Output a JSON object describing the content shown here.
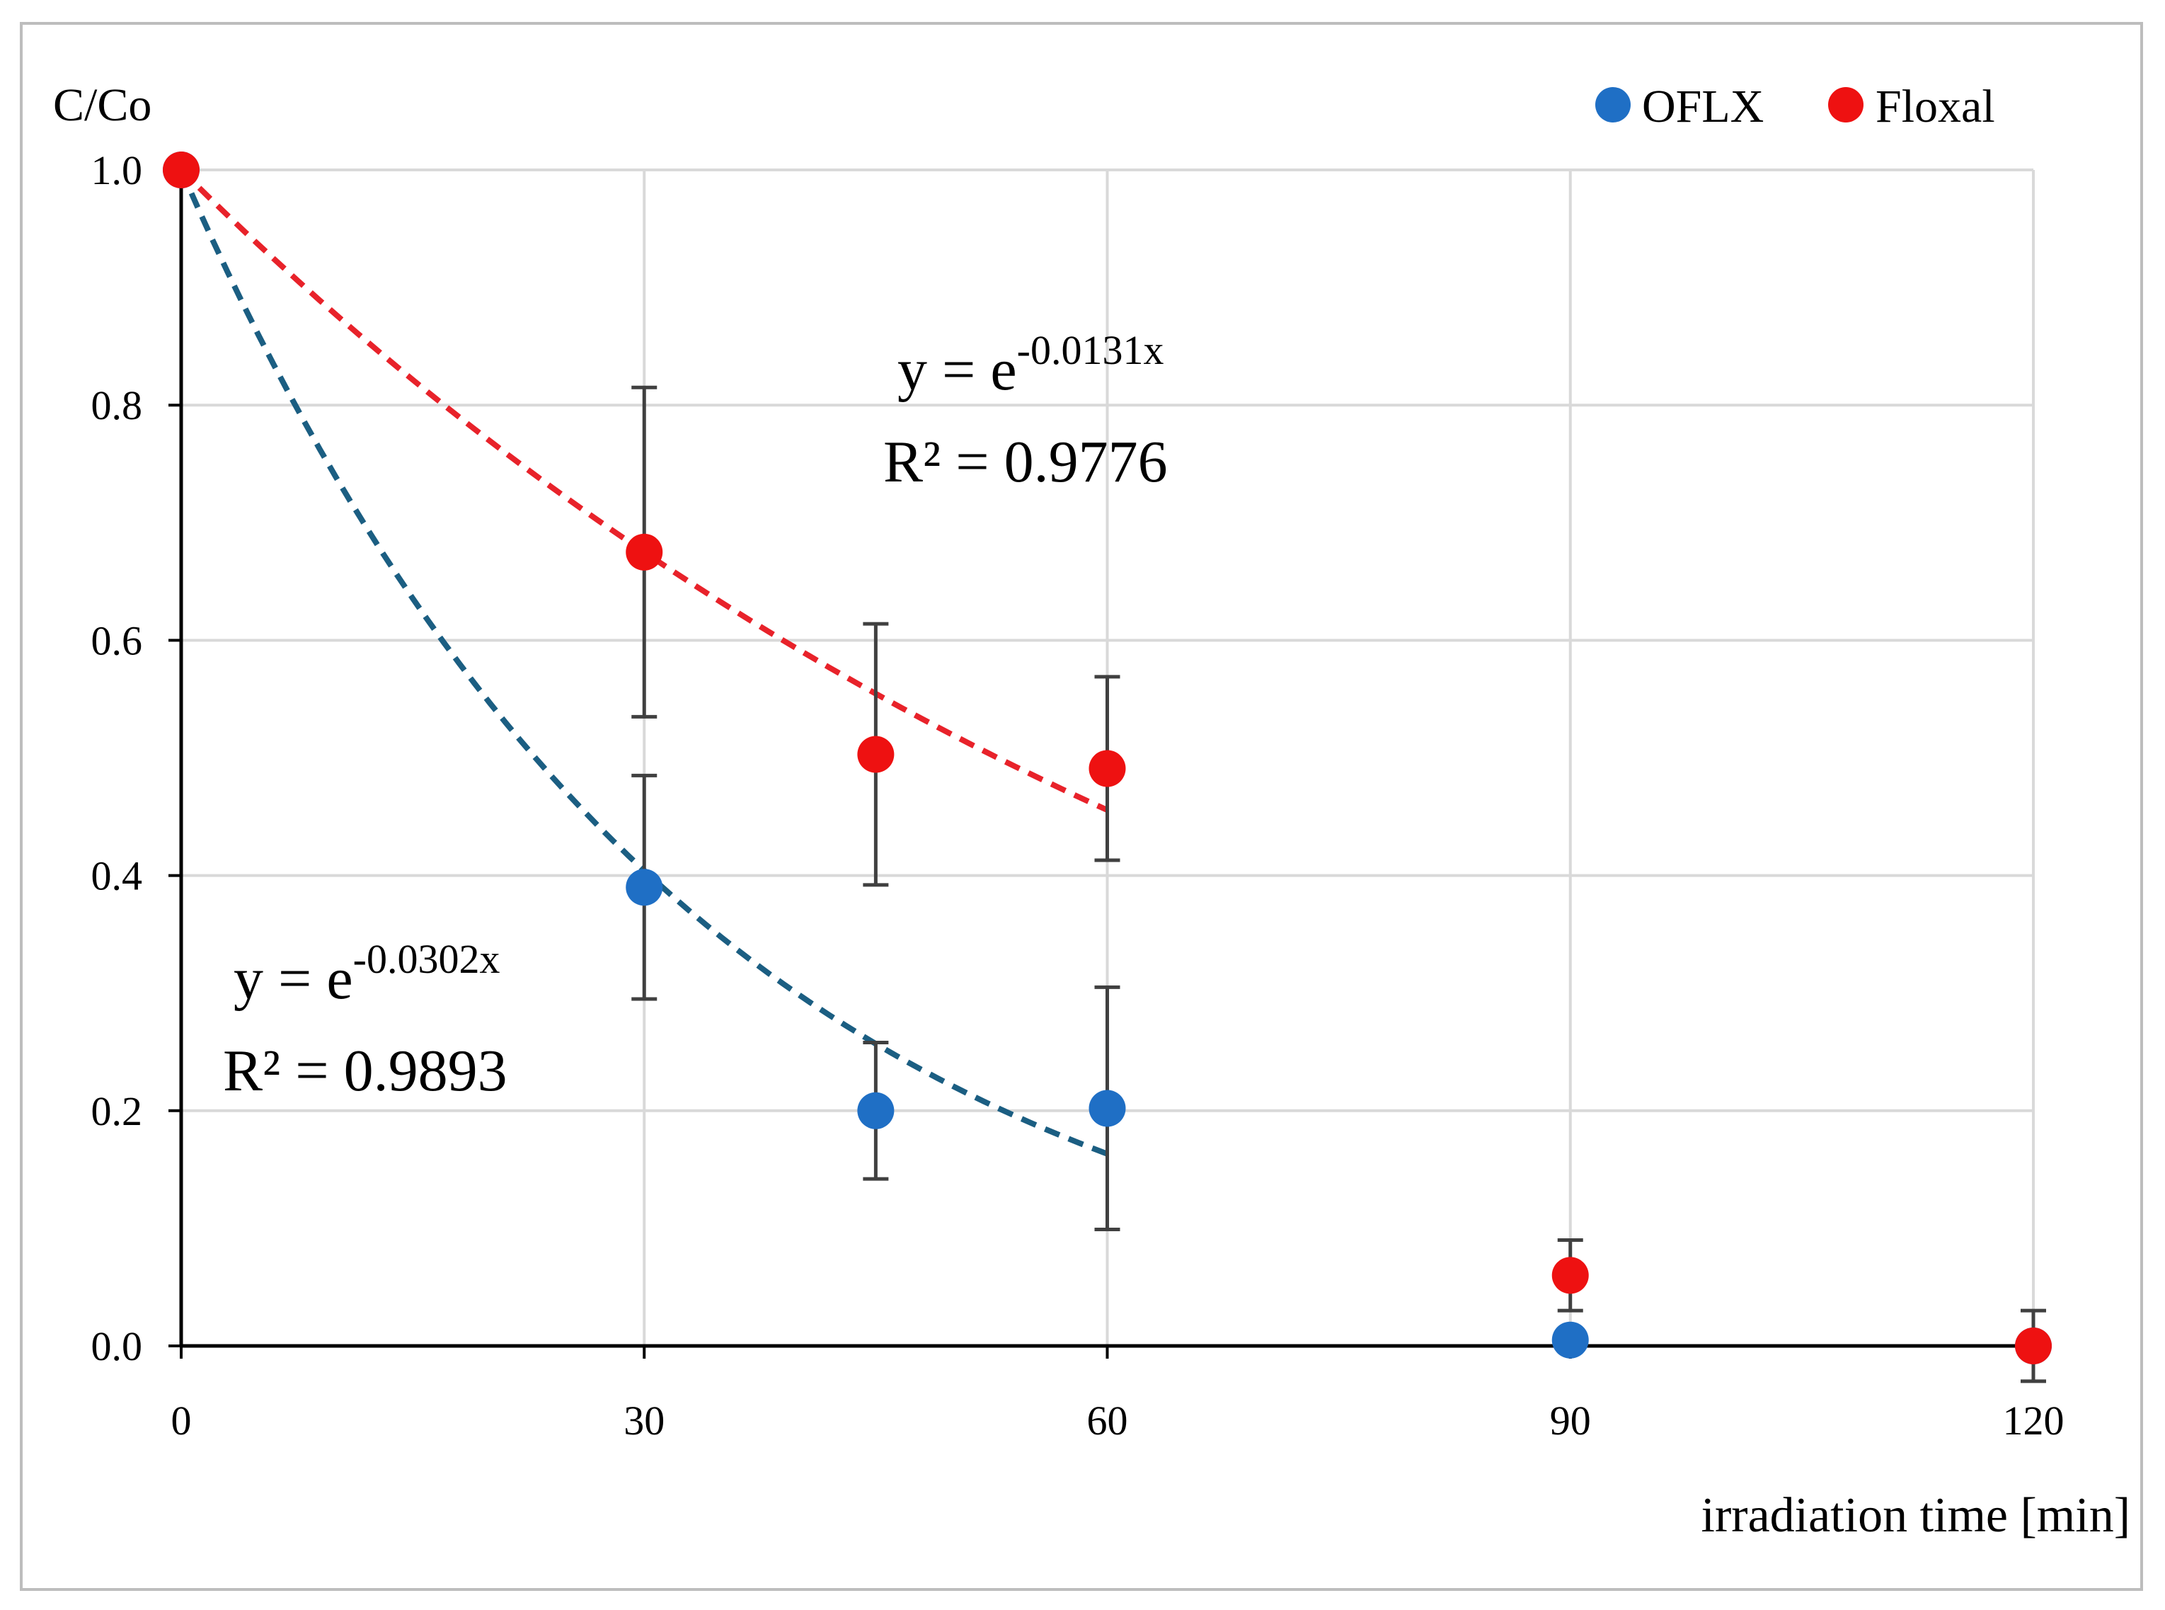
{
  "chart_data": {
    "type": "scatter",
    "title": "",
    "ylabel": "C/Co",
    "xlabel": "irradiation time [min]",
    "xlim": [
      0,
      120
    ],
    "ylim": [
      0,
      1.0
    ],
    "x_ticks": [
      0,
      30,
      60,
      90,
      120
    ],
    "x_tick_labels": [
      "0",
      "30",
      "60",
      "90",
      "120"
    ],
    "y_ticks": [
      0,
      0.2,
      0.4,
      0.6,
      0.8,
      1.0
    ],
    "y_tick_labels": [
      "0.0",
      "0.2",
      "0.4",
      "0.6",
      "0.8",
      "1.0"
    ],
    "grid": true,
    "legend_position": "top-right",
    "series": [
      {
        "name": "OFLX",
        "color": "#1f6fc5",
        "x": [
          0,
          30,
          45,
          60,
          90,
          120
        ],
        "y": [
          1.0,
          0.39,
          0.2,
          0.202,
          0.005,
          0.0
        ],
        "error": [
          0,
          0.095,
          0.058,
          0.103,
          0,
          0
        ],
        "trendline": {
          "type": "exponential",
          "k": -0.0302,
          "x_range": [
            0,
            60
          ],
          "color": "#1b5e82",
          "eq_base": "y = e",
          "eq_exp": "-0.0302x",
          "r2_text": "R² = 0.9893"
        }
      },
      {
        "name": "Floxal",
        "color": "#ee1111",
        "x": [
          0,
          30,
          45,
          60,
          90,
          120
        ],
        "y": [
          1.0,
          0.675,
          0.503,
          0.491,
          0.06,
          0.0
        ],
        "error": [
          0,
          0.14,
          0.111,
          0.078,
          0.03,
          0.03
        ],
        "trendline": {
          "type": "exponential",
          "k": -0.0131,
          "x_range": [
            0,
            60
          ],
          "color": "#e8222a",
          "eq_base": "y = e",
          "eq_exp": "-0.0131x",
          "r2_text": "R² = 0.9776"
        }
      }
    ]
  }
}
